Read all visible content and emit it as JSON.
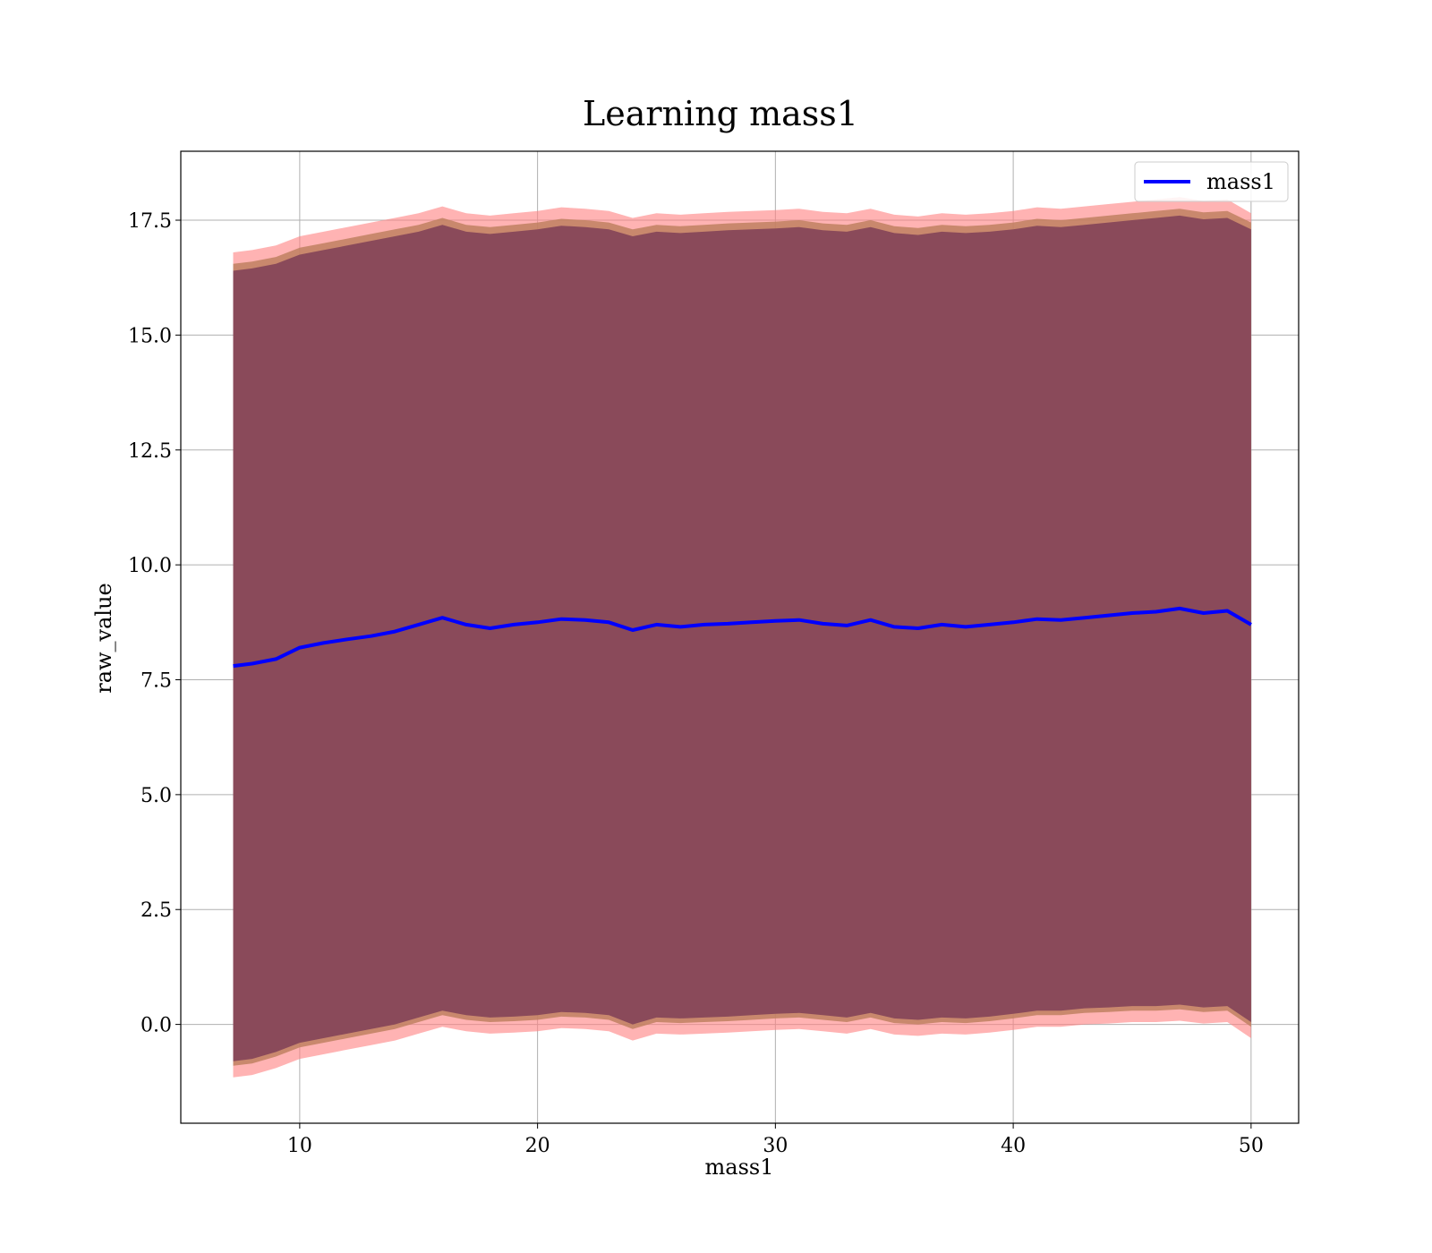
{
  "chart_data": {
    "type": "area",
    "title": "Learning mass1",
    "xlabel": "mass1",
    "ylabel": "raw_value",
    "xlim": [
      5,
      52
    ],
    "ylim": [
      -2.15,
      19
    ],
    "xticks": [
      10,
      20,
      30,
      40,
      50
    ],
    "xtick_labels": [
      "10",
      "20",
      "30",
      "40",
      "50"
    ],
    "yticks": [
      0.0,
      2.5,
      5.0,
      7.5,
      10.0,
      12.5,
      15.0,
      17.5
    ],
    "ytick_labels": [
      "0.0",
      "2.5",
      "5.0",
      "7.5",
      "10.0",
      "12.5",
      "15.0",
      "17.5"
    ],
    "grid": true,
    "legend_position": "top-right",
    "x": [
      7.2,
      8,
      9,
      10,
      11,
      12,
      13,
      14,
      15,
      16,
      17,
      18,
      19,
      20,
      21,
      22,
      23,
      24,
      25,
      26,
      27,
      28,
      29,
      30,
      31,
      32,
      33,
      34,
      35,
      36,
      37,
      38,
      39,
      40,
      41,
      42,
      43,
      44,
      45,
      46,
      47,
      48,
      49,
      50
    ],
    "series": [
      {
        "name": "mass1",
        "color": "#0000ff",
        "values": [
          7.8,
          7.85,
          7.95,
          8.2,
          8.3,
          8.38,
          8.45,
          8.55,
          8.7,
          8.85,
          8.7,
          8.62,
          8.7,
          8.75,
          8.82,
          8.8,
          8.75,
          8.58,
          8.7,
          8.65,
          8.7,
          8.72,
          8.75,
          8.78,
          8.8,
          8.72,
          8.68,
          8.8,
          8.65,
          8.62,
          8.7,
          8.65,
          8.7,
          8.75,
          8.82,
          8.8,
          8.85,
          8.9,
          8.95,
          8.98,
          9.05,
          8.95,
          9.0,
          8.7
        ]
      }
    ],
    "bands": [
      {
        "color": "#ff8080",
        "upper": [
          16.8,
          16.85,
          16.95,
          17.15,
          17.25,
          17.35,
          17.45,
          17.55,
          17.65,
          17.8,
          17.65,
          17.6,
          17.65,
          17.7,
          17.78,
          17.75,
          17.7,
          17.55,
          17.65,
          17.62,
          17.65,
          17.68,
          17.7,
          17.72,
          17.75,
          17.68,
          17.65,
          17.75,
          17.62,
          17.58,
          17.65,
          17.62,
          17.65,
          17.7,
          17.78,
          17.75,
          17.8,
          17.85,
          17.9,
          17.95,
          18.0,
          17.92,
          17.95,
          17.65
        ],
        "lower": [
          -1.15,
          -1.1,
          -0.95,
          -0.75,
          -0.65,
          -0.55,
          -0.45,
          -0.35,
          -0.2,
          -0.05,
          -0.15,
          -0.2,
          -0.18,
          -0.15,
          -0.08,
          -0.1,
          -0.15,
          -0.35,
          -0.2,
          -0.22,
          -0.2,
          -0.18,
          -0.15,
          -0.12,
          -0.1,
          -0.15,
          -0.2,
          -0.1,
          -0.22,
          -0.25,
          -0.2,
          -0.22,
          -0.18,
          -0.12,
          -0.05,
          -0.05,
          0.0,
          0.02,
          0.05,
          0.05,
          0.08,
          0.02,
          0.05,
          -0.3
        ]
      },
      {
        "color": "#c08060",
        "upper": [
          16.55,
          16.6,
          16.7,
          16.9,
          17.0,
          17.1,
          17.2,
          17.3,
          17.4,
          17.55,
          17.4,
          17.35,
          17.4,
          17.45,
          17.53,
          17.5,
          17.45,
          17.3,
          17.4,
          17.37,
          17.4,
          17.43,
          17.45,
          17.47,
          17.5,
          17.43,
          17.4,
          17.5,
          17.37,
          17.33,
          17.4,
          17.37,
          17.4,
          17.45,
          17.53,
          17.5,
          17.55,
          17.6,
          17.65,
          17.7,
          17.75,
          17.67,
          17.7,
          17.45
        ],
        "lower": [
          -0.9,
          -0.85,
          -0.7,
          -0.5,
          -0.4,
          -0.3,
          -0.2,
          -0.1,
          0.05,
          0.2,
          0.1,
          0.05,
          0.07,
          0.1,
          0.17,
          0.15,
          0.1,
          -0.1,
          0.05,
          0.03,
          0.05,
          0.07,
          0.1,
          0.13,
          0.15,
          0.1,
          0.05,
          0.15,
          0.03,
          0.0,
          0.05,
          0.03,
          0.07,
          0.13,
          0.2,
          0.2,
          0.25,
          0.27,
          0.3,
          0.3,
          0.33,
          0.27,
          0.3,
          -0.05
        ]
      },
      {
        "color": "#8a4a5a",
        "upper": [
          16.4,
          16.45,
          16.55,
          16.75,
          16.85,
          16.95,
          17.05,
          17.15,
          17.25,
          17.4,
          17.25,
          17.2,
          17.25,
          17.3,
          17.38,
          17.35,
          17.3,
          17.15,
          17.25,
          17.22,
          17.25,
          17.28,
          17.3,
          17.32,
          17.35,
          17.28,
          17.25,
          17.35,
          17.22,
          17.18,
          17.25,
          17.22,
          17.25,
          17.3,
          17.38,
          17.35,
          17.4,
          17.45,
          17.5,
          17.55,
          17.6,
          17.52,
          17.55,
          17.3
        ],
        "lower": [
          -0.8,
          -0.75,
          -0.6,
          -0.4,
          -0.3,
          -0.2,
          -0.1,
          0.0,
          0.15,
          0.3,
          0.2,
          0.15,
          0.17,
          0.2,
          0.27,
          0.25,
          0.2,
          0.0,
          0.15,
          0.13,
          0.15,
          0.17,
          0.2,
          0.23,
          0.25,
          0.2,
          0.15,
          0.25,
          0.13,
          0.1,
          0.15,
          0.13,
          0.17,
          0.23,
          0.3,
          0.3,
          0.35,
          0.37,
          0.4,
          0.4,
          0.43,
          0.37,
          0.4,
          0.05
        ]
      }
    ]
  }
}
